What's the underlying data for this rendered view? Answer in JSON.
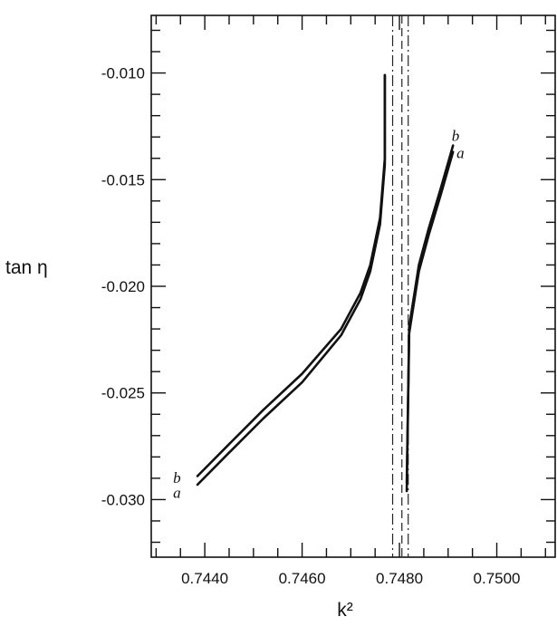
{
  "chart_data": {
    "type": "line",
    "xlabel": "k²",
    "ylabel": "tan η",
    "xlim": [
      0.7429,
      0.7512
    ],
    "ylim": [
      -0.0327,
      -0.0073
    ],
    "x_ticks": [
      {
        "value": 0.744,
        "label": "0.7440"
      },
      {
        "value": 0.746,
        "label": "0.7460"
      },
      {
        "value": 0.748,
        "label": "0.7480"
      },
      {
        "value": 0.75,
        "label": "0.7500"
      }
    ],
    "y_ticks": [
      {
        "value": -0.01,
        "label": "-0.010"
      },
      {
        "value": -0.015,
        "label": "-0.015"
      },
      {
        "value": -0.02,
        "label": "-0.020"
      },
      {
        "value": -0.025,
        "label": "-0.025"
      },
      {
        "value": -0.03,
        "label": "-0.030"
      }
    ],
    "x_minor_step": 0.0005,
    "y_minor_step": 0.001,
    "grid": false,
    "asymptotes": [
      {
        "x": 0.74786,
        "style": "dash-dot"
      },
      {
        "x": 0.74805,
        "style": "dashed"
      },
      {
        "x": 0.74818,
        "style": "dash-dot"
      }
    ],
    "series": [
      {
        "name": "a",
        "branches": [
          {
            "x": [
              0.74385,
              0.7445,
              0.7452,
              0.746,
              0.7468,
              0.7472,
              0.7474,
              0.7476,
              0.7477,
              0.7477
            ],
            "y": [
              -0.0293,
              -0.0278,
              -0.0262,
              -0.0245,
              -0.0223,
              -0.0206,
              -0.0193,
              -0.0171,
              -0.0143,
              -0.0101
            ]
          },
          {
            "x": [
              0.74815,
              0.7482,
              0.7484,
              0.7486,
              0.74885,
              0.7491
            ],
            "y": [
              -0.0296,
              -0.0222,
              -0.0193,
              -0.0176,
              -0.0157,
              -0.0137
            ]
          }
        ],
        "label_point": [
          0.7491,
          -0.0139
        ]
      },
      {
        "name": "b",
        "branches": [
          {
            "x": [
              0.74385,
              0.7445,
              0.7452,
              0.746,
              0.7468,
              0.7472,
              0.7474,
              0.7476,
              0.7477,
              0.7477
            ],
            "y": [
              -0.0289,
              -0.0274,
              -0.0258,
              -0.0241,
              -0.022,
              -0.0203,
              -0.019,
              -0.0168,
              -0.014,
              -0.0101
            ]
          },
          {
            "x": [
              0.74815,
              0.7482,
              0.7484,
              0.7486,
              0.74885,
              0.7491
            ],
            "y": [
              -0.0292,
              -0.0219,
              -0.019,
              -0.0173,
              -0.0154,
              -0.0134
            ]
          }
        ],
        "label_point": [
          0.749,
          -0.0131
        ]
      }
    ],
    "left_labels": [
      {
        "text": "b",
        "at": [
          0.74335,
          -0.029
        ]
      },
      {
        "text": "a",
        "at": [
          0.74335,
          -0.0297
        ]
      }
    ]
  }
}
